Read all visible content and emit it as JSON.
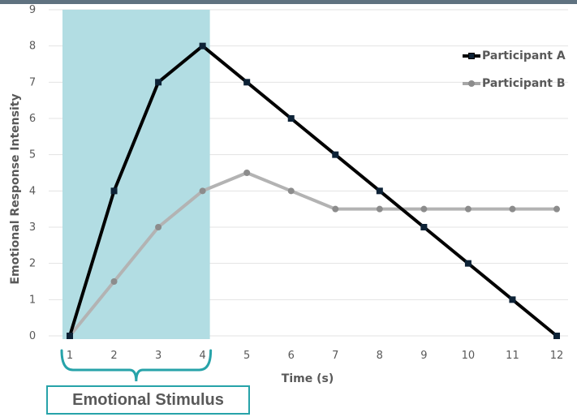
{
  "chart_data": {
    "type": "line",
    "title": "",
    "xlabel": "Time (s)",
    "ylabel": "Emotional Response Intensity",
    "x": [
      1,
      2,
      3,
      4,
      5,
      6,
      7,
      8,
      9,
      10,
      11,
      12
    ],
    "xlim": [
      1,
      12
    ],
    "ylim": [
      0,
      9
    ],
    "yticks": [
      0,
      1,
      2,
      3,
      4,
      5,
      6,
      7,
      8,
      9
    ],
    "grid": true,
    "legend_position": "top-right",
    "series": [
      {
        "name": "Participant A",
        "values": [
          0,
          4,
          7,
          8,
          7,
          6,
          5,
          4,
          3,
          2,
          1,
          0
        ],
        "color": "#000000",
        "marker": "square"
      },
      {
        "name": "Participant B",
        "values": [
          0,
          1.5,
          3,
          4,
          4.5,
          4,
          3.5,
          3.5,
          3.5,
          3.5,
          3.5,
          3.5
        ],
        "color": "#a6a6a6",
        "marker": "circle"
      }
    ],
    "highlight_region": {
      "x_start": 1,
      "x_end": 4,
      "color": "#b2dde3"
    },
    "annotation": {
      "text": "Emotional Stimulus",
      "x_start": 1,
      "x_end": 4,
      "color": "#27a3a9"
    }
  }
}
